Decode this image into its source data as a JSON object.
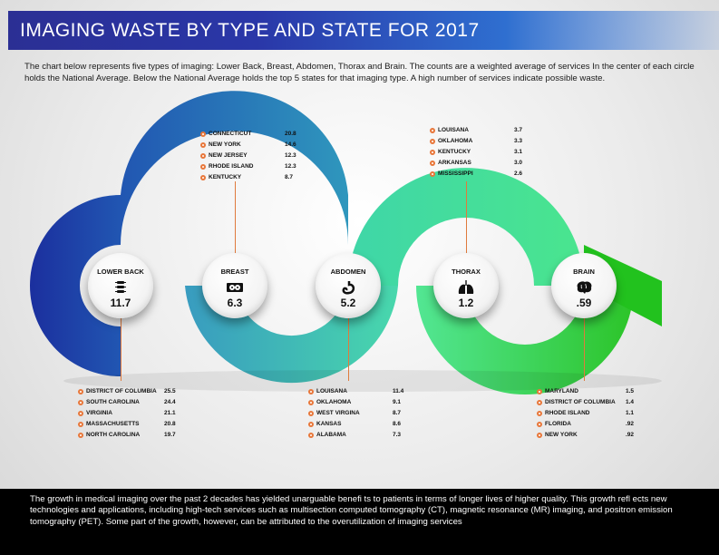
{
  "title": "IMAGING WASTE BY TYPE AND STATE FOR 2017",
  "intro": "The chart below represents five types of imaging: Lower Back, Breast, Abdomen, Thorax and Brain. The counts are a weighted average of services  In the center of each circle holds the National Average. Below the National Average holds the top 5 states for that imaging type. A high number of services indicate possible waste.",
  "colors": {
    "lower_back": "#1f3fa6",
    "breast": "#2e88b8",
    "abdomen": "#3cc4a6",
    "thorax": "#47e08f",
    "brain": "#2ecc2e",
    "bullet": "#e8773a",
    "title_bar": "#2b2f94"
  },
  "imaging": [
    {
      "label": "LOWER BACK",
      "value": "11.7",
      "icon": "spine-icon",
      "states": [
        {
          "name": "DISTRICT OF COLUMBIA",
          "value": "25.5"
        },
        {
          "name": "SOUTH CAROLINA",
          "value": "24.4"
        },
        {
          "name": "VIRGINIA",
          "value": "21.1"
        },
        {
          "name": "MASSACHUSETTS",
          "value": "20.8"
        },
        {
          "name": "NORTH CAROLINA",
          "value": "19.7"
        }
      ]
    },
    {
      "label": "BREAST",
      "value": "6.3",
      "icon": "breast-icon",
      "states": [
        {
          "name": "CONNECTICUT",
          "value": "20.8"
        },
        {
          "name": "NEW YORK",
          "value": "14.6"
        },
        {
          "name": "NEW JERSEY",
          "value": "12.3"
        },
        {
          "name": "RHODE ISLAND",
          "value": "12.3"
        },
        {
          "name": "KENTUCKY",
          "value": "8.7"
        }
      ]
    },
    {
      "label": "ABDOMEN",
      "value": "5.2",
      "icon": "stomach-icon",
      "states": [
        {
          "name": "LOUISANA",
          "value": "11.4"
        },
        {
          "name": "OKLAHOMA",
          "value": "9.1"
        },
        {
          "name": "WEST VIRGINA",
          "value": "8.7"
        },
        {
          "name": "KANSAS",
          "value": "8.6"
        },
        {
          "name": "ALABAMA",
          "value": "7.3"
        }
      ]
    },
    {
      "label": "THORAX",
      "value": "1.2",
      "icon": "lungs-icon",
      "states": [
        {
          "name": "LOUISANA",
          "value": "3.7"
        },
        {
          "name": "OKLAHOMA",
          "value": "3.3"
        },
        {
          "name": "KENTUCKY",
          "value": "3.1"
        },
        {
          "name": "ARKANSAS",
          "value": "3.0"
        },
        {
          "name": "MISSISSIPPI",
          "value": "2.6"
        }
      ]
    },
    {
      "label": "BRAIN",
      "value": ".59",
      "icon": "brain-icon",
      "states": [
        {
          "name": "MARYLAND",
          "value": "1.5"
        },
        {
          "name": "DISTRICT OF COLUMBIA",
          "value": "1.4"
        },
        {
          "name": "RHODE ISLAND",
          "value": "1.1"
        },
        {
          "name": "FLORIDA",
          "value": ".92"
        },
        {
          "name": "NEW YORK",
          "value": ".92"
        }
      ]
    }
  ],
  "footer": "The growth in medical imaging over the past 2 decades has  yielded unarguable benefi ts to patients in terms of longer lives of higher quality. This growth refl ects new technologies  and applications, including high-tech services such as multisection computed tomography (CT), magnetic resonance (MR) imaging, and positron emission tomography (PET). Some part of the growth, however, can be attributed to the overutilization of imaging services"
}
